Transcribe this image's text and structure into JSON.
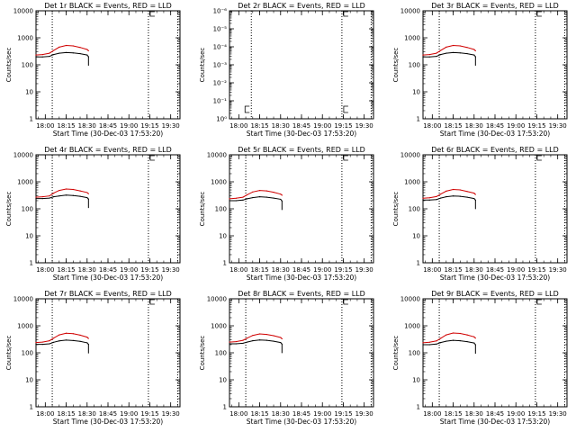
{
  "chart_data": [
    {
      "type": "line",
      "title": "Det 1r BLACK = Events, RED = LLD",
      "xlabel": "Start Time (30-Dec-03 17:53:20)",
      "ylabel": "Counts/sec",
      "yscale": "log",
      "xlim": [
        "17:53:20",
        "19:36:40"
      ],
      "ylim": [
        1,
        10000
      ],
      "xticks": [
        "18:00",
        "18:15",
        "18:30",
        "18:45",
        "19:00",
        "19:15",
        "19:30"
      ],
      "yticks": [
        "1",
        "10",
        "100",
        "1000",
        "10000"
      ],
      "vlines": [
        "18:05",
        "19:14",
        "19:35"
      ],
      "series": [
        {
          "color": "#000000",
          "x": [
            "17:53:20",
            "17:58:00",
            "18:03:00",
            "18:06:00",
            "18:10:00",
            "18:15:00",
            "18:20:00",
            "18:25:00",
            "18:30:00",
            "18:31:00"
          ],
          "values": [
            195,
            195,
            205,
            240,
            270,
            285,
            275,
            260,
            230,
            200
          ]
        },
        {
          "color": "#d00000",
          "x": [
            "17:53:20",
            "17:58:00",
            "18:03:00",
            "18:06:00",
            "18:10:00",
            "18:15:00",
            "18:20:00",
            "18:25:00",
            "18:30:00",
            "18:31:00"
          ],
          "values": [
            230,
            240,
            270,
            340,
            450,
            520,
            500,
            440,
            370,
            330
          ]
        }
      ]
    },
    {
      "type": "line",
      "title": "Det 2r BLACK = Events, RED = LLD",
      "xlabel": "Start Time (30-Dec-03 17:53:20)",
      "ylabel": "Counts/sec",
      "yscale": "log",
      "xlim": [
        "17:53:20",
        "19:36:40"
      ],
      "ylim": [
        1,
        1000000
      ],
      "xticks": [
        "18:00",
        "18:15",
        "18:30",
        "18:45",
        "19:00",
        "19:15",
        "19:30"
      ],
      "yticks": [
        "10⁰",
        "10⁻¹",
        "10⁻²",
        "10⁻³",
        "10⁻⁴",
        "10⁻⁵",
        "10⁻⁶"
      ],
      "vlines": [
        "18:09",
        "19:14",
        "19:35"
      ],
      "series": []
    },
    {
      "type": "line",
      "title": "Det 3r BLACK = Events, RED = LLD",
      "xlabel": "Start Time (30-Dec-03 17:53:20)",
      "ylabel": "Counts/sec",
      "yscale": "log",
      "xlim": [
        "17:53:20",
        "19:36:40"
      ],
      "ylim": [
        1,
        10000
      ],
      "xticks": [
        "18:00",
        "18:15",
        "18:30",
        "18:45",
        "19:00",
        "19:15",
        "19:30"
      ],
      "yticks": [
        "1",
        "10",
        "100",
        "1000",
        "10000"
      ],
      "vlines": [
        "18:05",
        "19:14",
        "19:35"
      ],
      "series": [
        {
          "color": "#000000",
          "x": [
            "17:53:20",
            "17:58:00",
            "18:03:00",
            "18:06:00",
            "18:10:00",
            "18:15:00",
            "18:20:00",
            "18:25:00",
            "18:30:00",
            "18:31:00"
          ],
          "values": [
            195,
            195,
            205,
            240,
            270,
            285,
            275,
            260,
            230,
            200
          ]
        },
        {
          "color": "#d00000",
          "x": [
            "17:53:20",
            "17:58:00",
            "18:03:00",
            "18:06:00",
            "18:10:00",
            "18:15:00",
            "18:20:00",
            "18:25:00",
            "18:30:00",
            "18:31:00"
          ],
          "values": [
            230,
            240,
            270,
            340,
            450,
            520,
            500,
            440,
            370,
            330
          ]
        }
      ]
    },
    {
      "type": "line",
      "title": "Det 4r BLACK = Events, RED = LLD",
      "xlabel": "Start Time (30-Dec-03 17:53:20)",
      "ylabel": "Counts/sec",
      "yscale": "log",
      "xlim": [
        "17:53:20",
        "19:36:40"
      ],
      "ylim": [
        1,
        10000
      ],
      "xticks": [
        "18:00",
        "18:15",
        "18:30",
        "18:45",
        "19:00",
        "19:15",
        "19:30"
      ],
      "yticks": [
        "1",
        "10",
        "100",
        "1000",
        "10000"
      ],
      "vlines": [
        "18:05",
        "19:14",
        "19:35"
      ],
      "series": [
        {
          "color": "#000000",
          "x": [
            "17:53:20",
            "17:58:00",
            "18:03:00",
            "18:06:00",
            "18:10:00",
            "18:15:00",
            "18:20:00",
            "18:25:00",
            "18:30:00",
            "18:31:00"
          ],
          "values": [
            240,
            240,
            250,
            280,
            300,
            320,
            310,
            290,
            260,
            230
          ]
        },
        {
          "color": "#d00000",
          "x": [
            "17:53:20",
            "17:58:00",
            "18:03:00",
            "18:06:00",
            "18:10:00",
            "18:15:00",
            "18:20:00",
            "18:25:00",
            "18:30:00",
            "18:31:00"
          ],
          "values": [
            270,
            280,
            300,
            380,
            480,
            540,
            520,
            460,
            400,
            360
          ]
        }
      ]
    },
    {
      "type": "line",
      "title": "Det 5r BLACK = Events, RED = LLD",
      "xlabel": "Start Time (30-Dec-03 17:53:20)",
      "ylabel": "Counts/sec",
      "yscale": "log",
      "xlim": [
        "17:53:20",
        "19:36:40"
      ],
      "ylim": [
        1,
        10000
      ],
      "xticks": [
        "18:00",
        "18:15",
        "18:30",
        "18:45",
        "19:00",
        "19:15",
        "19:30"
      ],
      "yticks": [
        "1",
        "10",
        "100",
        "1000",
        "10000"
      ],
      "vlines": [
        "18:05",
        "19:14",
        "19:35"
      ],
      "series": [
        {
          "color": "#000000",
          "x": [
            "17:53:20",
            "17:58:00",
            "18:03:00",
            "18:06:00",
            "18:10:00",
            "18:15:00",
            "18:20:00",
            "18:25:00",
            "18:30:00",
            "18:31:00"
          ],
          "values": [
            200,
            200,
            210,
            235,
            260,
            280,
            270,
            250,
            225,
            195
          ]
        },
        {
          "color": "#d00000",
          "x": [
            "17:53:20",
            "17:58:00",
            "18:03:00",
            "18:06:00",
            "18:10:00",
            "18:15:00",
            "18:20:00",
            "18:25:00",
            "18:30:00",
            "18:31:00"
          ],
          "values": [
            235,
            245,
            270,
            330,
            420,
            480,
            460,
            410,
            350,
            320
          ]
        }
      ]
    },
    {
      "type": "line",
      "title": "Det 6r BLACK = Events, RED = LLD",
      "xlabel": "Start Time (30-Dec-03 17:53:20)",
      "ylabel": "Counts/sec",
      "yscale": "log",
      "xlim": [
        "17:53:20",
        "19:36:40"
      ],
      "ylim": [
        1,
        10000
      ],
      "xticks": [
        "18:00",
        "18:15",
        "18:30",
        "18:45",
        "19:00",
        "19:15",
        "19:30"
      ],
      "yticks": [
        "1",
        "10",
        "100",
        "1000",
        "10000"
      ],
      "vlines": [
        "18:05",
        "19:14",
        "19:35"
      ],
      "series": [
        {
          "color": "#000000",
          "x": [
            "17:53:20",
            "17:58:00",
            "18:03:00",
            "18:06:00",
            "18:10:00",
            "18:15:00",
            "18:20:00",
            "18:25:00",
            "18:30:00",
            "18:31:00"
          ],
          "values": [
            210,
            210,
            220,
            250,
            280,
            300,
            290,
            270,
            240,
            210
          ]
        },
        {
          "color": "#d00000",
          "x": [
            "17:53:20",
            "17:58:00",
            "18:03:00",
            "18:06:00",
            "18:10:00",
            "18:15:00",
            "18:20:00",
            "18:25:00",
            "18:30:00",
            "18:31:00"
          ],
          "values": [
            245,
            255,
            285,
            350,
            450,
            520,
            500,
            440,
            380,
            340
          ]
        }
      ]
    },
    {
      "type": "line",
      "title": "Det 7r BLACK = Events, RED = LLD",
      "xlabel": "Start Time (30-Dec-03 17:53:20)",
      "ylabel": "Counts/sec",
      "yscale": "log",
      "xlim": [
        "17:53:20",
        "19:36:40"
      ],
      "ylim": [
        1,
        10000
      ],
      "xticks": [
        "18:00",
        "18:15",
        "18:30",
        "18:45",
        "19:00",
        "19:15",
        "19:30"
      ],
      "yticks": [
        "1",
        "10",
        "100",
        "1000",
        "10000"
      ],
      "vlines": [
        "18:05",
        "19:14",
        "19:35"
      ],
      "series": [
        {
          "color": "#000000",
          "x": [
            "17:53:20",
            "17:58:00",
            "18:03:00",
            "18:06:00",
            "18:10:00",
            "18:15:00",
            "18:20:00",
            "18:25:00",
            "18:30:00",
            "18:31:00"
          ],
          "values": [
            205,
            205,
            215,
            245,
            275,
            295,
            285,
            265,
            235,
            205
          ]
        },
        {
          "color": "#d00000",
          "x": [
            "17:53:20",
            "17:58:00",
            "18:03:00",
            "18:06:00",
            "18:10:00",
            "18:15:00",
            "18:20:00",
            "18:25:00",
            "18:30:00",
            "18:31:00"
          ],
          "values": [
            240,
            250,
            280,
            350,
            460,
            530,
            510,
            450,
            380,
            340
          ]
        }
      ]
    },
    {
      "type": "line",
      "title": "Det 8r BLACK = Events, RED = LLD",
      "xlabel": "Start Time (30-Dec-03 17:53:20)",
      "ylabel": "Counts/sec",
      "yscale": "log",
      "xlim": [
        "17:53:20",
        "19:36:40"
      ],
      "ylim": [
        1,
        10000
      ],
      "xticks": [
        "18:00",
        "18:15",
        "18:30",
        "18:45",
        "19:00",
        "19:15",
        "19:30"
      ],
      "yticks": [
        "1",
        "10",
        "100",
        "1000",
        "10000"
      ],
      "vlines": [
        "18:05",
        "19:14",
        "19:35"
      ],
      "series": [
        {
          "color": "#000000",
          "x": [
            "17:53:20",
            "17:58:00",
            "18:03:00",
            "18:06:00",
            "18:10:00",
            "18:15:00",
            "18:20:00",
            "18:25:00",
            "18:30:00",
            "18:31:00"
          ],
          "values": [
            215,
            215,
            225,
            250,
            280,
            300,
            290,
            270,
            240,
            210
          ]
        },
        {
          "color": "#d00000",
          "x": [
            "17:53:20",
            "17:58:00",
            "18:03:00",
            "18:06:00",
            "18:10:00",
            "18:15:00",
            "18:20:00",
            "18:25:00",
            "18:30:00",
            "18:31:00"
          ],
          "values": [
            250,
            260,
            290,
            350,
            440,
            500,
            480,
            430,
            370,
            330
          ]
        }
      ]
    },
    {
      "type": "line",
      "title": "Det 9r BLACK = Events, RED = LLD",
      "xlabel": "Start Time (30-Dec-03 17:53:20)",
      "ylabel": "Counts/sec",
      "yscale": "log",
      "xlim": [
        "17:53:20",
        "19:36:40"
      ],
      "ylim": [
        1,
        10000
      ],
      "xticks": [
        "18:00",
        "18:15",
        "18:30",
        "18:45",
        "19:00",
        "19:15",
        "19:30"
      ],
      "yticks": [
        "1",
        "10",
        "100",
        "1000",
        "10000"
      ],
      "vlines": [
        "18:05",
        "19:14",
        "19:35"
      ],
      "series": [
        {
          "color": "#000000",
          "x": [
            "17:53:20",
            "17:58:00",
            "18:03:00",
            "18:06:00",
            "18:10:00",
            "18:15:00",
            "18:20:00",
            "18:25:00",
            "18:30:00",
            "18:31:00"
          ],
          "values": [
            200,
            200,
            210,
            240,
            270,
            290,
            280,
            260,
            230,
            200
          ]
        },
        {
          "color": "#d00000",
          "x": [
            "17:53:20",
            "17:58:00",
            "18:03:00",
            "18:06:00",
            "18:10:00",
            "18:15:00",
            "18:20:00",
            "18:25:00",
            "18:30:00",
            "18:31:00"
          ],
          "values": [
            235,
            245,
            275,
            345,
            460,
            540,
            520,
            460,
            390,
            350
          ]
        }
      ]
    }
  ]
}
